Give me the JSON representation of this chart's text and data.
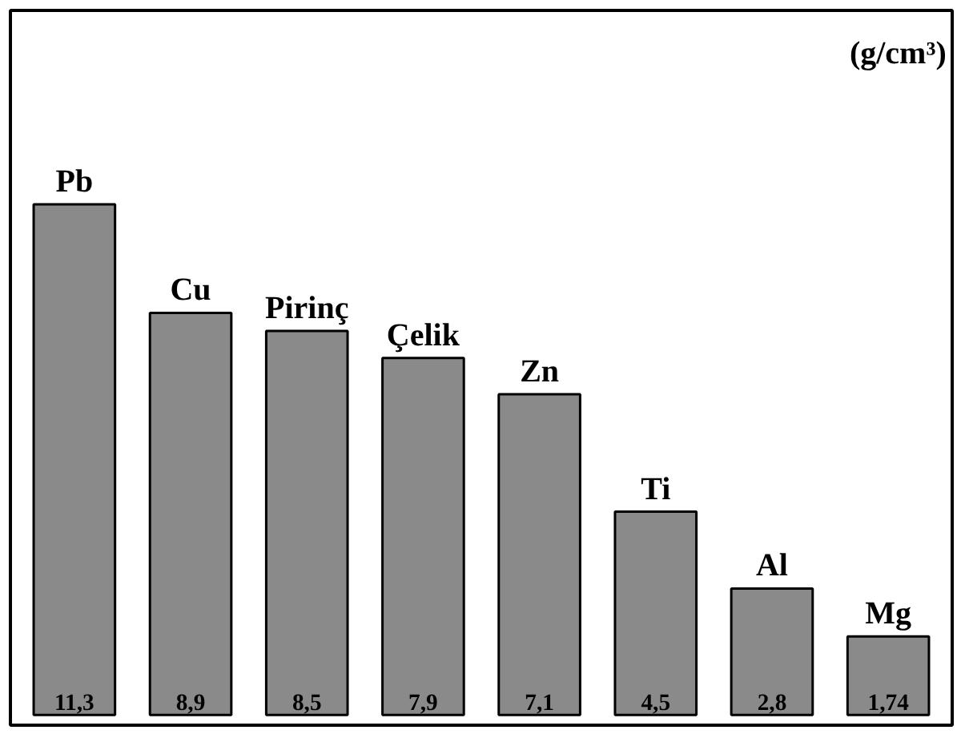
{
  "chart_data": {
    "type": "bar",
    "categories": [
      "Pb",
      "Cu",
      "Pirinç",
      "Çelik",
      "Zn",
      "Ti",
      "Al",
      "Mg"
    ],
    "values": [
      11.3,
      8.9,
      8.5,
      7.9,
      7.1,
      4.5,
      2.8,
      1.74
    ],
    "value_labels": [
      "11,3",
      "8,9",
      "8,5",
      "7,9",
      "7,1",
      "4,5",
      "2,8",
      "1,74"
    ],
    "color": "#8a8a8a",
    "annotations": [
      "(g/cm³)"
    ]
  }
}
